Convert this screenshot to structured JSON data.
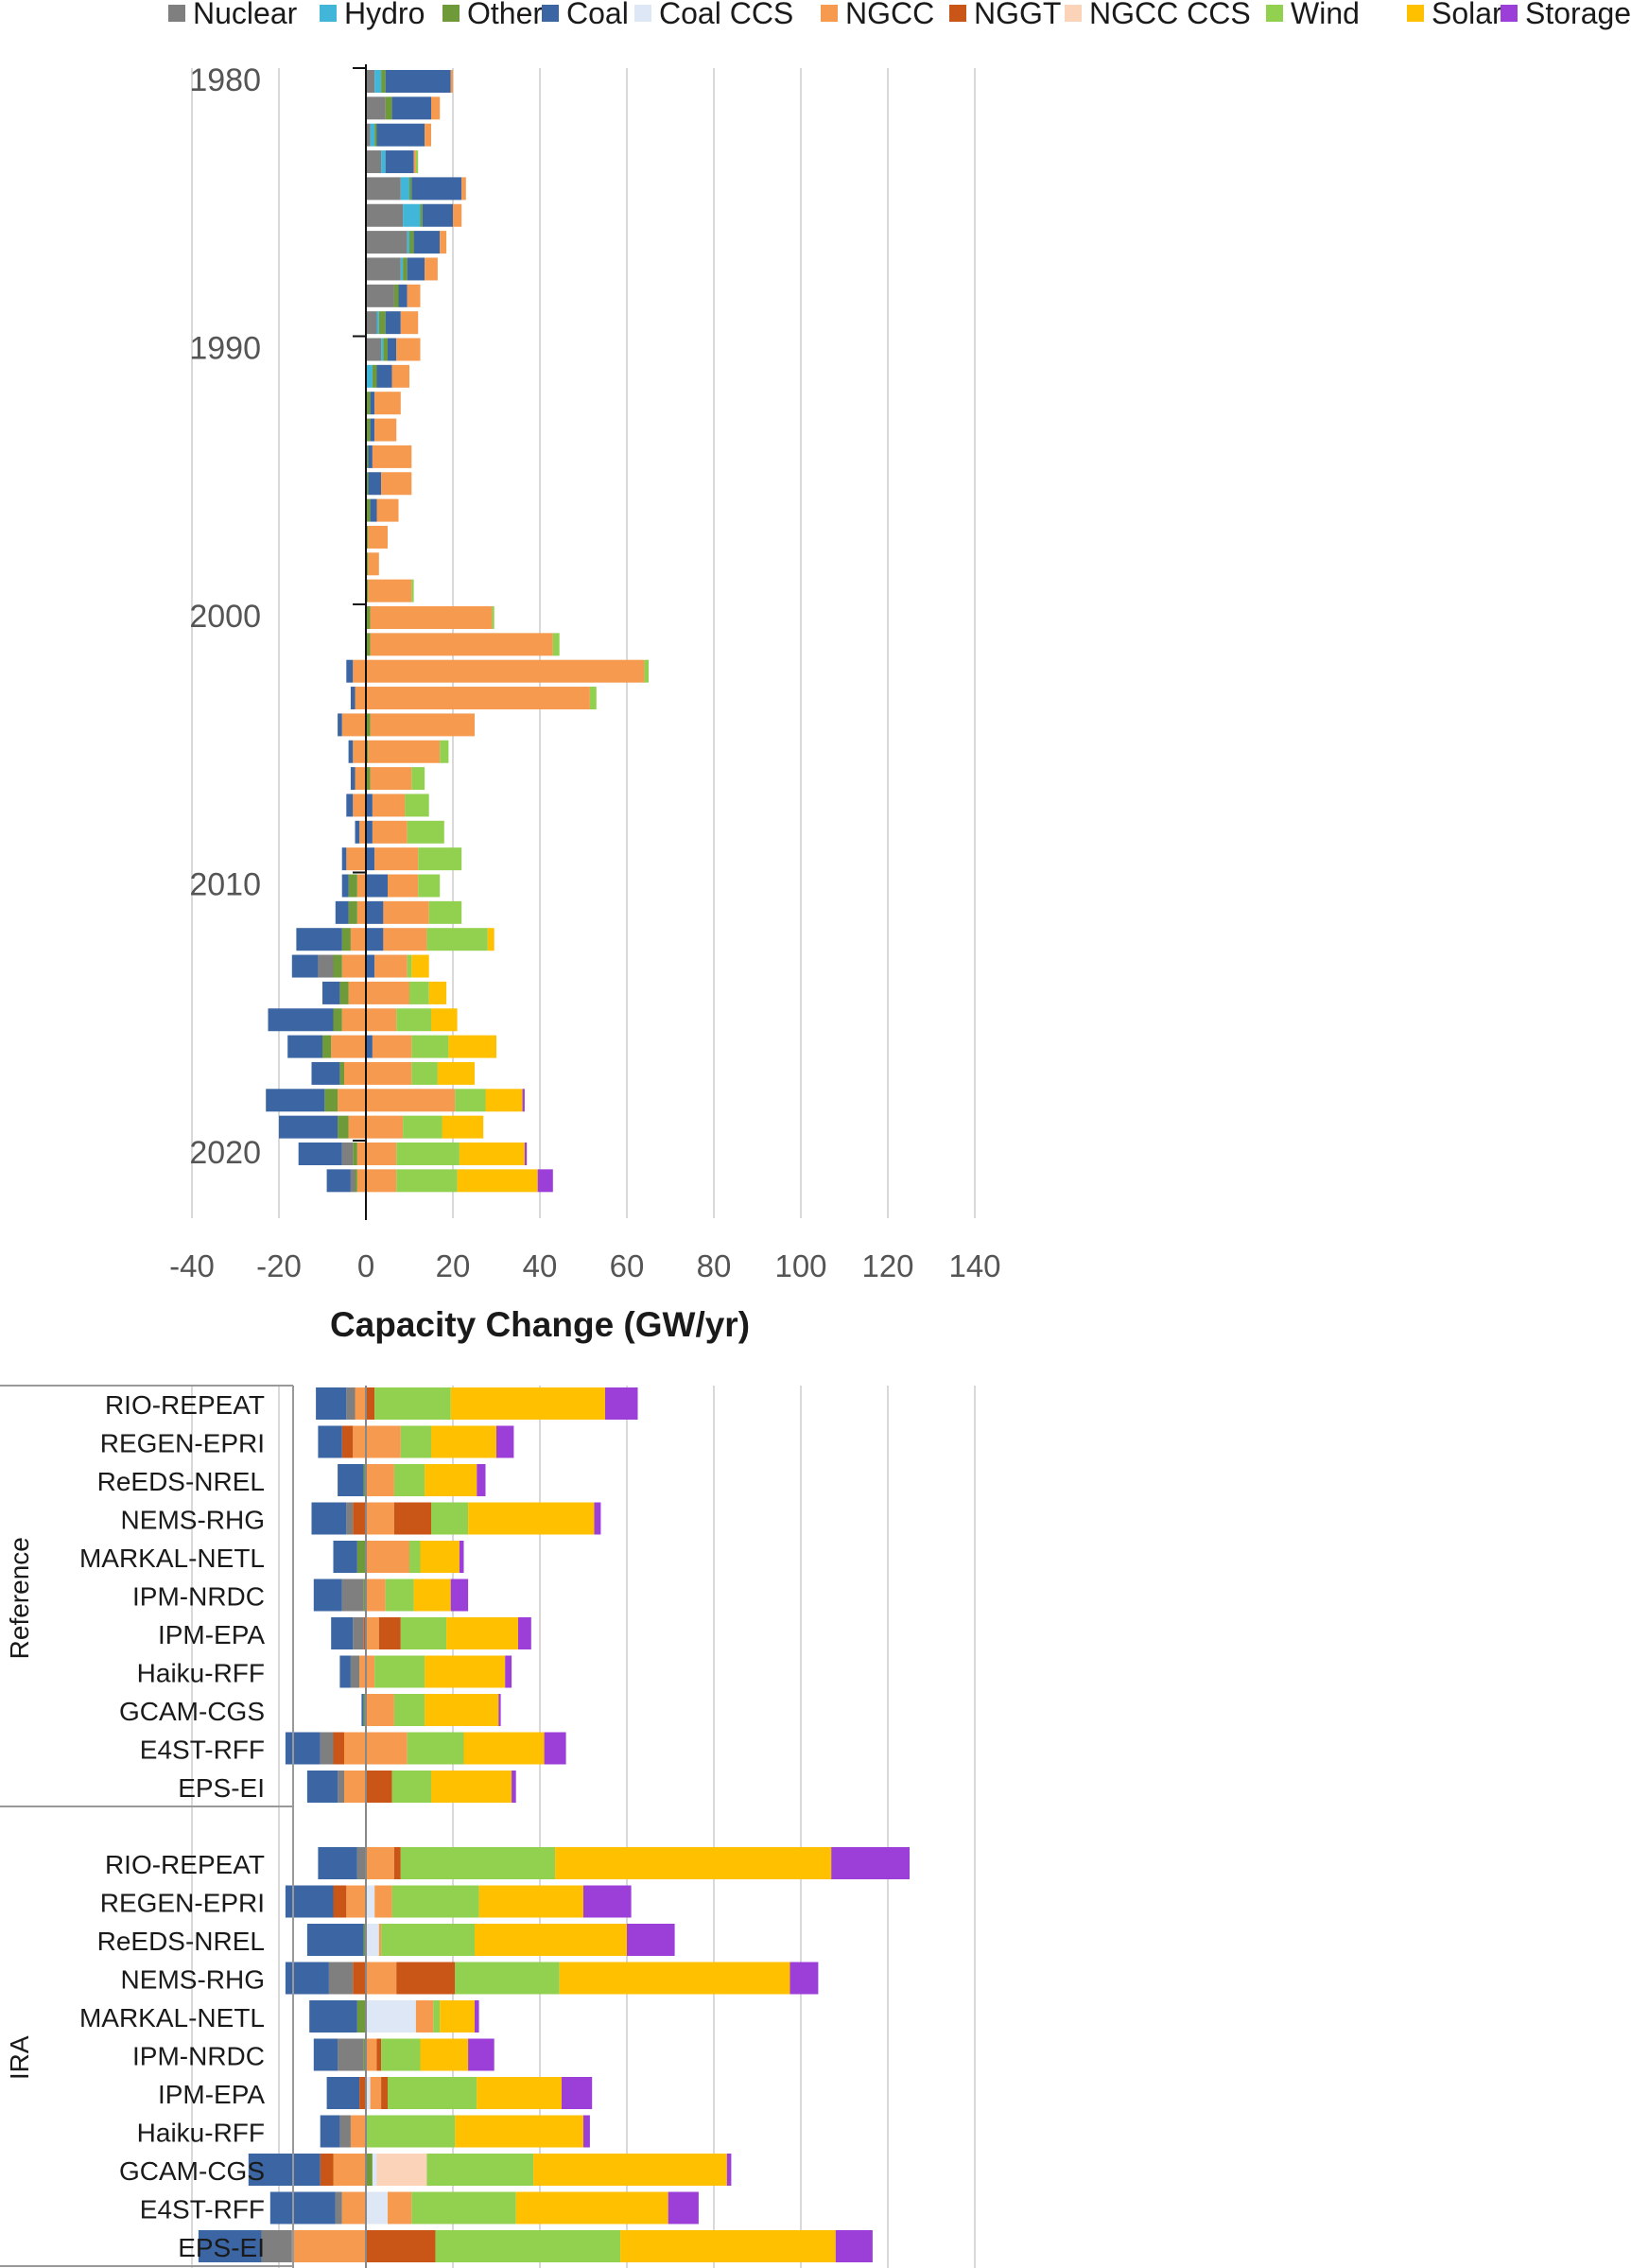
{
  "chart_data": [
    {
      "type": "bar",
      "orientation": "horizontal",
      "stacked": true,
      "xlabel": "Capacity Change (GW/yr)",
      "xlim": [
        -40,
        140
      ],
      "xticks": [
        -40,
        -20,
        0,
        20,
        40,
        60,
        80,
        100,
        120,
        140
      ],
      "ytick_labels": [
        "1980",
        "1990",
        "2000",
        "2010",
        "2020"
      ],
      "grid": "vertical",
      "legend_position": "top",
      "series": [
        {
          "name": "Nuclear",
          "color": "#7f7f7f"
        },
        {
          "name": "Hydro",
          "color": "#41b6d8"
        },
        {
          "name": "Other",
          "color": "#6f9a3a"
        },
        {
          "name": "Coal",
          "color": "#3b65a3"
        },
        {
          "name": "Coal CCS",
          "color": "#dde7f5"
        },
        {
          "name": "NGCC",
          "color": "#f59a4f"
        },
        {
          "name": "NGGT",
          "color": "#c95617"
        },
        {
          "name": "NGCC CCS",
          "color": "#fad3b8"
        },
        {
          "name": "Wind",
          "color": "#92d050"
        },
        {
          "name": "Solar",
          "color": "#ffc000"
        },
        {
          "name": "Storage",
          "color": "#9b3fd8"
        }
      ],
      "years": [
        1980,
        1981,
        1982,
        1983,
        1984,
        1985,
        1986,
        1987,
        1988,
        1989,
        1990,
        1991,
        1992,
        1993,
        1994,
        1995,
        1996,
        1997,
        1998,
        1999,
        2000,
        2001,
        2002,
        2003,
        2004,
        2005,
        2006,
        2007,
        2008,
        2009,
        2010,
        2011,
        2012,
        2013,
        2014,
        2015,
        2016,
        2017,
        2018,
        2019,
        2020,
        2021
      ],
      "rows": [
        {
          "Nuclear": 2,
          "Hydro": 1.5,
          "Other": 1,
          "Coal": 15,
          "NGCC": 0.5
        },
        {
          "Nuclear": 4.5,
          "Other": 1.5,
          "Coal": 9,
          "NGCC": 2
        },
        {
          "Nuclear": 1,
          "Hydro": 1,
          "Other": 0.5,
          "Coal": 11,
          "NGCC": 1.5
        },
        {
          "Nuclear": 3.5,
          "Hydro": 1,
          "Coal": 6.5,
          "NGCC": 0.5,
          "Wind": 0.5
        },
        {
          "Nuclear": 8,
          "Hydro": 2,
          "Other": 0.5,
          "Coal": 11.5,
          "NGCC": 1
        },
        {
          "Nuclear": 8.5,
          "Hydro": 4,
          "Other": 0.5,
          "Coal": 7,
          "NGCC": 2
        },
        {
          "Nuclear": 9.5,
          "Hydro": 0.5,
          "Other": 1,
          "Coal": 6,
          "NGCC": 1.5
        },
        {
          "Nuclear": 8,
          "Hydro": 0.5,
          "Other": 1,
          "Coal": 4,
          "NGCC": 3
        },
        {
          "Nuclear": 6.5,
          "Other": 1,
          "Coal": 2,
          "NGCC": 3
        },
        {
          "Nuclear": 2.5,
          "Hydro": 0.5,
          "Other": 1.5,
          "Coal": 3.5,
          "NGCC": 4
        },
        {
          "Nuclear": 3.5,
          "Hydro": 0.5,
          "Other": 1,
          "Coal": 2,
          "NGCC": 5.5
        },
        {
          "Hydro": 1.5,
          "Other": 1,
          "Coal": 3.5,
          "NGCC": 4
        },
        {
          "Other": 1,
          "Coal": 1,
          "NGCC": 6
        },
        {
          "Other": 1,
          "Coal": 1,
          "NGCC": 5
        },
        {
          "Other": 0.5,
          "Coal": 1,
          "NGCC": 9
        },
        {
          "Other": 0.5,
          "Coal": 3,
          "NGCC": 7
        },
        {
          "Other": 1,
          "Coal": 1.5,
          "NGCC": 5
        },
        {
          "Other": 0.5,
          "NGCC": 4.5
        },
        {
          "Other": 0.5,
          "NGCC": 2.5
        },
        {
          "Other": 0.5,
          "NGCC": 10,
          "Wind": 0.5
        },
        {
          "Other": 1,
          "NGCC": 28,
          "Wind": 0.5
        },
        {
          "Other": 1,
          "NGCC": 42,
          "Wind": 1.5
        },
        {
          "NGCC_neg": -3,
          "Coal_neg": -1.5,
          "NGCC": 64,
          "Wind": 1
        },
        {
          "NGCC_neg": -2.5,
          "Coal_neg": -1,
          "NGCC": 51.5,
          "Wind": 1.5
        },
        {
          "NGCC_neg": -5.5,
          "Coal_neg": -1,
          "Other": 1,
          "NGCC": 24
        },
        {
          "NGCC_neg": -3,
          "Coal_neg": -1,
          "Other": 0.5,
          "NGCC": 16.5,
          "Wind": 2
        },
        {
          "NGCC_neg": -2.5,
          "Coal_neg": -1,
          "Other": 1,
          "NGCC": 9.5,
          "Wind": 3
        },
        {
          "NGCC_neg": -3,
          "Coal_neg": -1.5,
          "Coal": 1.5,
          "NGCC": 7.5,
          "Wind": 5.5
        },
        {
          "NGCC_neg": -1.5,
          "Coal_neg": -1,
          "Coal": 1.5,
          "NGCC": 8,
          "Wind": 8.5
        },
        {
          "NGCC_neg": -4.5,
          "Coal_neg": -1,
          "Coal": 2,
          "NGCC": 10,
          "Wind": 10
        },
        {
          "NGCC_neg": -2,
          "Other_neg": -2,
          "Coal_neg": -1.5,
          "Coal": 5,
          "NGCC": 7,
          "Wind": 5
        },
        {
          "NGCC_neg": -2,
          "Other_neg": -2,
          "Coal_neg": -3,
          "Coal": 4,
          "NGCC": 10.5,
          "Wind": 7.5
        },
        {
          "NGCC_neg": -3.5,
          "Other_neg": -2,
          "Coal_neg": -10.5,
          "Coal": 4,
          "NGCC": 10,
          "Wind": 14,
          "Solar": 1.5
        },
        {
          "NGCC_neg": -5.5,
          "Nuclear_neg": -3.5,
          "Other_neg": -2,
          "Coal_neg": -6,
          "Coal": 2,
          "NGCC": 7.5,
          "Wind": 1,
          "Solar": 4
        },
        {
          "NGCC_neg": -4,
          "Other_neg": -2,
          "Coal_neg": -4,
          "NGCC": 10,
          "Wind": 4.5,
          "Solar": 4
        },
        {
          "NGCC_neg": -5.5,
          "Other_neg": -2,
          "Coal_neg": -15,
          "NGCC": 7,
          "Wind": 8,
          "Solar": 6
        },
        {
          "NGCC_neg": -8,
          "Other_neg": -2,
          "Coal_neg": -8,
          "Coal": 1.5,
          "NGCC": 9,
          "Wind": 8.5,
          "Solar": 11
        },
        {
          "NGCC_neg": -5,
          "Other_neg": -1,
          "Coal_neg": -6.5,
          "NGCC": 10.5,
          "Wind": 6,
          "Solar": 8.5
        },
        {
          "NGCC_neg": -6.5,
          "Other_neg": -3,
          "Coal_neg": -13.5,
          "NGCC": 20.5,
          "Wind": 7,
          "Solar": 8.5,
          "Storage": 0.5
        },
        {
          "NGCC_neg": -4,
          "Other_neg": -2.5,
          "Coal_neg": -13.5,
          "NGCC": 8.5,
          "Wind": 9,
          "Solar": 9.5
        },
        {
          "NGCC_neg": -2,
          "Nuclear_neg": -2.5,
          "Other_neg": -1,
          "Coal_neg": -10,
          "NGCC": 7,
          "Wind": 14.5,
          "Solar": 15,
          "Storage": 0.5
        },
        {
          "NGCC_neg": -2,
          "Nuclear_neg": -1,
          "Other_neg": -0.5,
          "Coal_neg": -5.5,
          "NGCC": 7,
          "Wind": 14,
          "Solar": 18.5,
          "Storage": 3.5
        }
      ]
    },
    {
      "type": "bar",
      "orientation": "horizontal",
      "stacked": true,
      "xlim": [
        -40,
        140
      ],
      "grid": "vertical",
      "groups": [
        {
          "name": "Reference",
          "models": [
            "RIO-REPEAT",
            "REGEN-EPRI",
            "ReEDS-NREL",
            "NEMS-RHG",
            "MARKAL-NETL",
            "IPM-NRDC",
            "IPM-EPA",
            "Haiku-RFF",
            "GCAM-CGS",
            "E4ST-RFF",
            "EPS-EI"
          ],
          "rows": [
            {
              "Coal_neg": -7,
              "Nuclear_neg": -2,
              "NGCC_neg": -2.5,
              "NGGT": 2,
              "Wind": 17.5,
              "Solar": 35.5,
              "Storage": 7.5
            },
            {
              "Coal_neg": -5.5,
              "NGGT_neg": -2.5,
              "NGCC_neg": -3,
              "NGCC": 8,
              "Wind": 7,
              "Solar": 15,
              "Storage": 4
            },
            {
              "Coal_neg": -6,
              "Other_neg": -0.5,
              "NGCC": 6.5,
              "Wind": 7,
              "Solar": 12,
              "Storage": 2
            },
            {
              "Coal_neg": -8,
              "Nuclear_neg": -1.5,
              "NGGT_neg": -3,
              "NGCC": 6.5,
              "NGGT": 8.5,
              "Wind": 8.5,
              "Solar": 29,
              "Storage": 1.5
            },
            {
              "Coal_neg": -5.5,
              "Other_neg": -2,
              "NGCC": 10,
              "Wind": 2.5,
              "Solar": 9,
              "Storage": 1
            },
            {
              "Coal_neg": -6.5,
              "Nuclear_neg": -5,
              "Other_neg": -0.5,
              "NGCC": 4.5,
              "Wind": 6.5,
              "Solar": 8.5,
              "Storage": 4
            },
            {
              "Coal_neg": -5,
              "Nuclear_neg": -2.5,
              "NGGT_neg": -0.5,
              "NGCC": 3,
              "NGGT": 5,
              "Wind": 10.5,
              "Solar": 16.5,
              "Storage": 3
            },
            {
              "Coal_neg": -2.5,
              "Nuclear_neg": -2,
              "NGCC_neg": -1.5,
              "NGCC": 2,
              "Wind": 11.5,
              "Solar": 18.5,
              "Storage": 1.5
            },
            {
              "Coal_neg": -0.5,
              "Other_neg": -0.5,
              "NGCC": 6.5,
              "Wind": 7,
              "Solar": 17,
              "Storage": 0.5
            },
            {
              "Coal_neg": -8,
              "Nuclear_neg": -3,
              "NGGT_neg": -2.5,
              "NGCC_neg": -5,
              "NGCC": 9.5,
              "Wind": 13,
              "Solar": 18.5,
              "Storage": 5
            },
            {
              "Coal_neg": -7,
              "Nuclear_neg": -1.5,
              "NGCC_neg": -5,
              "NGGT": 6,
              "Wind": 9,
              "Solar": 18.5,
              "Storage": 1
            }
          ]
        },
        {
          "name": "IRA",
          "models": [
            "RIO-REPEAT",
            "REGEN-EPRI",
            "ReEDS-NREL",
            "NEMS-RHG",
            "MARKAL-NETL",
            "IPM-NRDC",
            "IPM-EPA",
            "Haiku-RFF",
            "GCAM-CGS",
            "E4ST-RFF",
            "EPS-EI"
          ],
          "rows": [
            {
              "Coal_neg": -9,
              "Nuclear_neg": -2,
              "NGCC": 6.5,
              "NGGT": 1.5,
              "Wind": 35.5,
              "Solar": 63.5,
              "Storage": 18
            },
            {
              "Coal_neg": -11,
              "NGGT_neg": -3,
              "NGCC_neg": -4.5,
              "Coal CCS": 2,
              "NGCC": 4,
              "Wind": 20,
              "Solar": 24,
              "Storage": 11
            },
            {
              "Coal_neg": -13,
              "Other_neg": -0.5,
              "Coal CCS": 3,
              "NGCC": 0.5,
              "Wind": 21.5,
              "Solar": 35,
              "Storage": 11
            },
            {
              "Coal_neg": -10,
              "Nuclear_neg": -5.5,
              "NGGT_neg": -3,
              "NGCC": 7,
              "NGGT": 13.5,
              "Wind": 24,
              "Solar": 53,
              "Storage": 6.5
            },
            {
              "Coal_neg": -11,
              "Other_neg": -2,
              "Coal CCS": 11.5,
              "NGCC": 4,
              "Wind": 1.5,
              "Solar": 8,
              "Storage": 1
            },
            {
              "Coal_neg": -5.5,
              "Nuclear_neg": -6,
              "Other_neg": -0.5,
              "NGCC": 2.5,
              "NGGT": 1,
              "Wind": 9,
              "Solar": 11,
              "Storage": 6
            },
            {
              "Coal_neg": -7.5,
              "NGGT_neg": -1.5,
              "Coal CCS": 1,
              "NGCC": 2.5,
              "NGGT": 1.5,
              "Wind": 20.5,
              "Solar": 19.5,
              "Storage": 7
            },
            {
              "Coal_neg": -4.5,
              "Nuclear_neg": -2.5,
              "NGCC_neg": -3.5,
              "Wind": 20.5,
              "Solar": 29.5,
              "Storage": 1.5
            },
            {
              "Coal_neg": -16.5,
              "NGGT_neg": -3,
              "NGCC_neg": -7.5,
              "Other": 1.5,
              "Coal CCS": 1,
              "NGCC CCS": 11.5,
              "Wind": 24.5,
              "Solar": 44.5,
              "Storage": 1
            },
            {
              "Coal_neg": -15,
              "Nuclear_neg": -1.5,
              "NGCC_neg": -5.5,
              "Coal CCS": 5,
              "NGCC": 5.5,
              "Wind": 24,
              "Solar": 35,
              "Storage": 7
            },
            {
              "Coal_neg": -14.5,
              "Nuclear_neg": -7,
              "NGCC_neg": -17,
              "NGGT": 16,
              "Wind": 42.5,
              "Solar": 49.5,
              "Storage": 8.5
            }
          ]
        }
      ]
    }
  ]
}
